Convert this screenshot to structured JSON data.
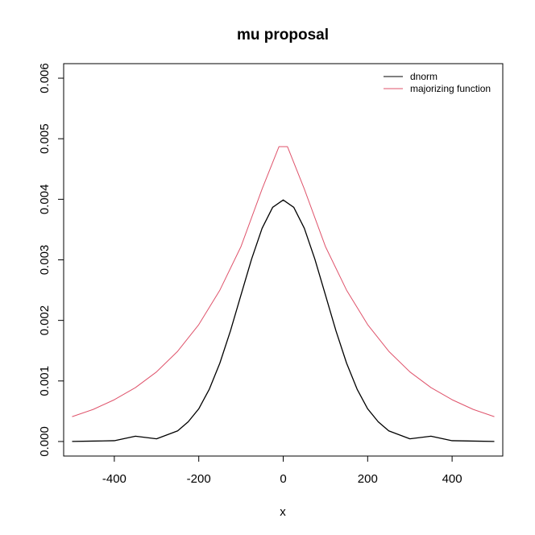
{
  "chart_data": {
    "type": "line",
    "title": "mu proposal",
    "xlabel": "x",
    "ylabel": "",
    "xlim": [
      -520,
      520
    ],
    "ylim": [
      -0.00024,
      0.00624
    ],
    "x_ticks": [
      -400,
      -200,
      0,
      200,
      400
    ],
    "x_tick_labels": [
      "-400",
      "-200",
      "0",
      "200",
      "400"
    ],
    "y_ticks": [
      0,
      0.001,
      0.002,
      0.003,
      0.004,
      0.005,
      0.006
    ],
    "y_tick_labels": [
      "0.000",
      "0.001",
      "0.002",
      "0.003",
      "0.004",
      "0.005",
      "0.006"
    ],
    "grid": false,
    "legend_position": "top-right",
    "series": [
      {
        "name": "dnorm",
        "color": "#000000",
        "x": [
          -500,
          -450,
          -400,
          -350,
          -300,
          -250,
          -225,
          -200,
          -175,
          -150,
          -125,
          -100,
          -75,
          -50,
          -25,
          0,
          25,
          50,
          75,
          100,
          125,
          150,
          175,
          200,
          225,
          250,
          300,
          350,
          400,
          450,
          500
        ],
        "y": [
          1.5e-06,
          6.8e-06,
          1.34e-05,
          8.73e-05,
          4.43e-05,
          0.0001753,
          0.0003252,
          0.00054,
          0.000864,
          0.001295,
          0.001826,
          0.00242,
          0.003011,
          0.003521,
          0.003867,
          0.003989,
          0.003867,
          0.003521,
          0.003011,
          0.00242,
          0.001826,
          0.001295,
          0.000864,
          0.00054,
          0.0003252,
          0.0001753,
          4.43e-05,
          8.73e-05,
          1.34e-05,
          6.8e-06,
          1.5e-06
        ]
      },
      {
        "name": "majorizing function",
        "color": "#DF536B",
        "x": [
          -500,
          -450,
          -400,
          -350,
          -300,
          -250,
          -200,
          -150,
          -100,
          -50,
          -10,
          0,
          10,
          50,
          100,
          150,
          200,
          250,
          300,
          350,
          400,
          450,
          500
        ],
        "y": [
          0.00041,
          0.00053,
          0.00069,
          0.00089,
          0.00115,
          0.00149,
          0.00193,
          0.0025,
          0.00322,
          0.00417,
          0.00487,
          0.00487,
          0.00487,
          0.00417,
          0.00322,
          0.0025,
          0.00193,
          0.00149,
          0.00115,
          0.00089,
          0.00069,
          0.00053,
          0.00041
        ]
      }
    ]
  }
}
